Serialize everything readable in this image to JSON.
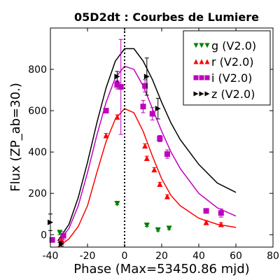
{
  "chart_data": {
    "type": "scatter",
    "title": "05D2dt : Courbes de Lumiere",
    "xlabel": "Phase (Max=53450.86 mjd)",
    "ylabel": "Flux (ZP_ab=30.)",
    "xlim": [
      -40,
      80
    ],
    "ylim": [
      -60,
      1000
    ],
    "xticks": [
      -40,
      -20,
      0,
      20,
      40,
      60,
      80
    ],
    "yticks": [
      0,
      200,
      400,
      600,
      800
    ],
    "max_phase_line": 0,
    "legend_position": "top-right",
    "series": [
      {
        "name": "g (V2.0)",
        "color": "#008000",
        "marker": "triangle-down",
        "points": [
          {
            "x": -35,
            "y": 10,
            "err": 10
          },
          {
            "x": -4,
            "y": 150,
            "err": 5
          },
          {
            "x": 12,
            "y": 45,
            "err": 5
          },
          {
            "x": 18,
            "y": 22,
            "err": 5
          },
          {
            "x": 24,
            "y": 30,
            "err": 5
          }
        ]
      },
      {
        "name": "r (V2.0)",
        "color": "#ff0000",
        "marker": "triangle-up",
        "points": [
          {
            "x": -39,
            "y": -25,
            "err": 10
          },
          {
            "x": -34,
            "y": -25,
            "err": 8
          },
          {
            "x": -10,
            "y": 480,
            "err": 10
          },
          {
            "x": -4,
            "y": 570,
            "err": 10
          },
          {
            "x": 11,
            "y": 430,
            "err": 10
          },
          {
            "x": 12,
            "y": 370,
            "err": 10
          },
          {
            "x": 16,
            "y": 315,
            "err": 10
          },
          {
            "x": 19,
            "y": 245,
            "err": 8
          },
          {
            "x": 23,
            "y": 185,
            "err": 8
          },
          {
            "x": 44,
            "y": 60,
            "err": 8
          },
          {
            "x": 52,
            "y": 50,
            "err": 8
          }
        ]
      },
      {
        "name": "i (V2.0)",
        "color": "#bf00bf",
        "marker": "square",
        "points": [
          {
            "x": -39,
            "y": -25,
            "err": 10
          },
          {
            "x": -33,
            "y": -5,
            "err": 20
          },
          {
            "x": -10,
            "y": 600,
            "err": 10
          },
          {
            "x": -4,
            "y": 725,
            "err": 20
          },
          {
            "x": -2,
            "y": 715,
            "err": 230
          },
          {
            "x": 10,
            "y": 620,
            "err": 30
          },
          {
            "x": 11,
            "y": 720,
            "err": 30
          },
          {
            "x": 15,
            "y": 585,
            "err": 30
          },
          {
            "x": 19,
            "y": 465,
            "err": 15
          },
          {
            "x": 23,
            "y": 390,
            "err": 20
          },
          {
            "x": 44,
            "y": 115,
            "err": 10
          },
          {
            "x": 52,
            "y": 105,
            "err": 20
          }
        ]
      },
      {
        "name": "z (V2.0)",
        "color": "#000000",
        "marker": "triangle-right",
        "points": [
          {
            "x": -40,
            "y": 60,
            "err": 40
          },
          {
            "x": -34,
            "y": -45,
            "err": 10
          },
          {
            "x": -4,
            "y": 765,
            "err": 25
          },
          {
            "x": 12,
            "y": 765,
            "err": 90
          },
          {
            "x": 18,
            "y": 610,
            "err": 50
          }
        ]
      }
    ],
    "model_curves": [
      {
        "band": "r",
        "color": "#ff0000",
        "x": [
          -36,
          -30,
          -25,
          -20,
          -15,
          -10,
          -5,
          0,
          5,
          10,
          15,
          20,
          25,
          30,
          40,
          50,
          60
        ],
        "y": [
          -60,
          -20,
          40,
          140,
          300,
          450,
          560,
          610,
          590,
          500,
          380,
          270,
          190,
          140,
          80,
          50,
          35
        ]
      },
      {
        "band": "i",
        "color": "#bf00bf",
        "x": [
          -36,
          -30,
          -25,
          -20,
          -15,
          -10,
          -5,
          0,
          5,
          10,
          15,
          20,
          25,
          30,
          40,
          50,
          60
        ],
        "y": [
          -40,
          30,
          140,
          300,
          480,
          640,
          760,
          815,
          800,
          720,
          610,
          500,
          400,
          320,
          200,
          130,
          90
        ]
      },
      {
        "band": "z",
        "color": "#000000",
        "x": [
          -36,
          -30,
          -25,
          -20,
          -15,
          -10,
          -5,
          0,
          5,
          10,
          15,
          20,
          25,
          30,
          40,
          50,
          60
        ],
        "y": [
          -30,
          50,
          180,
          350,
          540,
          710,
          840,
          900,
          900,
          840,
          750,
          640,
          540,
          460,
          340,
          250,
          205
        ]
      }
    ]
  }
}
